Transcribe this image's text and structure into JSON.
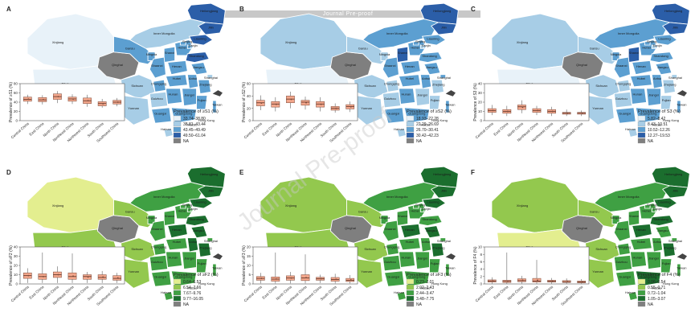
{
  "header": {
    "banner": "Journal Pre-proof",
    "diagonal_watermark": "Journal Pre-proof"
  },
  "regions": [
    "Central China",
    "East China",
    "North China",
    "Northeast China",
    "Northwest China",
    "South China",
    "Southwest China"
  ],
  "province_labels": {
    "xinjiang": "Xinjiang",
    "tibet": "Tibet",
    "qinghai": "Qinghai",
    "gansu": "Gansu",
    "inner_mongolia": "Inner Mongolia",
    "heilongjiang": "Heilongjiang",
    "jilin": "Jilin",
    "liaoning": "Liaoning",
    "beijing": "Beijing",
    "tianjin": "Tianjin",
    "hebei": "Hebei",
    "ningxia": "Ningxia",
    "shanxi": "Shanxi",
    "shandong": "Shandong",
    "shaanxi": "Shaanxi",
    "henan": "Henan",
    "jiangsu": "Jiangsu",
    "sichuan": "Sichuan",
    "chongqing": "Chongqing",
    "hubei": "Hubei",
    "anhui": "Anhui",
    "shanghai": "Shanghai",
    "zhejiang": "Zhejiang",
    "hunan": "Hunan",
    "jiangxi": "Jiangxi",
    "guizhou": "Guizhou",
    "fujian": "Fujian",
    "yunnan": "Yunnan",
    "guangxi": "Guangxi",
    "guangdong": "Guangdong",
    "taiwan": "Taiwan",
    "hong_kong": "Hong Kong",
    "macao": "Macao",
    "hainan": "Hainan"
  },
  "panels": [
    {
      "letter": "A",
      "ylabel": "Prevalence of ≥S1 (%)",
      "ymax": 80,
      "ticks": [
        0,
        20,
        40,
        60,
        80
      ],
      "legend_title": "Prevalence of ≥S1 (%)",
      "legend": [
        "33.74–38.80",
        "38.81–43.44",
        "43.45–49.49",
        "49.50–61.04",
        "NA"
      ],
      "palette": [
        "#e8f2f9",
        "#a7cde6",
        "#5c9fd1",
        "#2b5ea8",
        "#7f7f7f"
      ],
      "boxes": [
        {
          "q1": 42,
          "med": 46,
          "q3": 51,
          "lo": 36,
          "hi": 56
        },
        {
          "q1": 41,
          "med": 45,
          "q3": 50,
          "lo": 35,
          "hi": 55
        },
        {
          "q1": 46,
          "med": 52,
          "q3": 58,
          "lo": 38,
          "hi": 64
        },
        {
          "q1": 42,
          "med": 47,
          "q3": 51,
          "lo": 36,
          "hi": 57
        },
        {
          "q1": 37,
          "med": 43,
          "q3": 49,
          "lo": 30,
          "hi": 56
        },
        {
          "q1": 32,
          "med": 37,
          "q3": 41,
          "lo": 28,
          "hi": 47
        },
        {
          "q1": 36,
          "med": 40,
          "q3": 44,
          "lo": 31,
          "hi": 49
        }
      ]
    },
    {
      "letter": "B",
      "ylabel": "Prevalence of ≥S2 (%)",
      "ymax": 60,
      "ticks": [
        0,
        20,
        40,
        60
      ],
      "legend_title": "Prevalence of ≥S2 (%)",
      "legend": [
        "18.93–22.28",
        "22.29–26.69",
        "26.70–30.41",
        "30.42–42.23",
        "NA"
      ],
      "palette": [
        "#e8f2f9",
        "#a7cde6",
        "#5c9fd1",
        "#2b5ea8",
        "#7f7f7f"
      ],
      "boxes": [
        {
          "q1": 24,
          "med": 29,
          "q3": 33,
          "lo": 17,
          "hi": 41
        },
        {
          "q1": 22,
          "med": 27,
          "q3": 31,
          "lo": 15,
          "hi": 38
        },
        {
          "q1": 29,
          "med": 35,
          "q3": 40,
          "lo": 20,
          "hi": 47
        },
        {
          "q1": 25,
          "med": 30,
          "q3": 33,
          "lo": 18,
          "hi": 39
        },
        {
          "q1": 22,
          "med": 27,
          "q3": 31,
          "lo": 15,
          "hi": 38
        },
        {
          "q1": 17,
          "med": 20,
          "q3": 23,
          "lo": 13,
          "hi": 28
        },
        {
          "q1": 19,
          "med": 23,
          "q3": 26,
          "lo": 14,
          "hi": 31
        }
      ]
    },
    {
      "letter": "C",
      "ylabel": "Prevalence of S3 (%)",
      "ymax": 40,
      "ticks": [
        0,
        10,
        20,
        30,
        40
      ],
      "legend_title": "Prevalence of S3 (%)",
      "legend": [
        "5.82–8.42",
        "8.43–10.51",
        "10.52–12.26",
        "12.27–19.53",
        "NA"
      ],
      "palette": [
        "#e8f2f9",
        "#a7cde6",
        "#5c9fd1",
        "#2b5ea8",
        "#7f7f7f"
      ],
      "boxes": [
        {
          "q1": 9,
          "med": 11,
          "q3": 13,
          "lo": 6,
          "hi": 17
        },
        {
          "q1": 8,
          "med": 10,
          "q3": 12,
          "lo": 5,
          "hi": 16
        },
        {
          "q1": 12,
          "med": 15,
          "q3": 17,
          "lo": 8,
          "hi": 22
        },
        {
          "q1": 9,
          "med": 11,
          "q3": 13,
          "lo": 6,
          "hi": 16
        },
        {
          "q1": 8,
          "med": 10,
          "q3": 12,
          "lo": 5,
          "hi": 15
        },
        {
          "q1": 7,
          "med": 8,
          "q3": 9,
          "lo": 5,
          "hi": 12
        },
        {
          "q1": 7,
          "med": 8,
          "q3": 9,
          "lo": 5,
          "hi": 11
        }
      ]
    },
    {
      "letter": "D",
      "ylabel": "Prevalence of ≥F2 (%)",
      "ymax": 40,
      "ticks": [
        0,
        10,
        20,
        30,
        40
      ],
      "legend_title": "Prevalence of ≥F2 (%)",
      "legend": [
        "0.64–6.53",
        "6.54–7.66",
        "7.67–9.76",
        "9.77–16.05",
        "NA"
      ],
      "palette": [
        "#e3ee8f",
        "#93c84e",
        "#3fa043",
        "#1b6e2e",
        "#7f7f7f"
      ],
      "boxes": [
        {
          "q1": 6,
          "med": 9,
          "q3": 12,
          "lo": 1,
          "hi": 17
        },
        {
          "q1": 5,
          "med": 8,
          "q3": 11,
          "lo": 1,
          "hi": 34
        },
        {
          "q1": 7,
          "med": 10,
          "q3": 13,
          "lo": 1,
          "hi": 19
        },
        {
          "q1": 5,
          "med": 8,
          "q3": 12,
          "lo": 1,
          "hi": 33
        },
        {
          "q1": 5,
          "med": 8,
          "q3": 10,
          "lo": 1,
          "hi": 13
        },
        {
          "q1": 5,
          "med": 7,
          "q3": 10,
          "lo": 1,
          "hi": 14
        },
        {
          "q1": 4,
          "med": 6,
          "q3": 9,
          "lo": 1,
          "hi": 12
        }
      ]
    },
    {
      "letter": "E",
      "ylabel": "Prevalence of ≥F3 (%)",
      "ymax": 20,
      "ticks": [
        0,
        5,
        10,
        15,
        20
      ],
      "legend_title": "Prevalence of ≥F3 (%)",
      "legend": [
        "0.23–2.01",
        "2.02–2.43",
        "2.44–3.47",
        "3.48–7.75",
        "NA"
      ],
      "palette": [
        "#e3ee8f",
        "#93c84e",
        "#3fa043",
        "#1b6e2e",
        "#7f7f7f"
      ],
      "boxes": [
        {
          "q1": 2,
          "med": 3,
          "q3": 4,
          "lo": 0.3,
          "hi": 6
        },
        {
          "q1": 1.5,
          "med": 2.6,
          "q3": 3.8,
          "lo": 0.3,
          "hi": 17
        },
        {
          "q1": 2,
          "med": 3.2,
          "q3": 4.4,
          "lo": 0.3,
          "hi": 6.5
        },
        {
          "q1": 1.8,
          "med": 3.3,
          "q3": 5,
          "lo": 0.3,
          "hi": 16
        },
        {
          "q1": 2,
          "med": 2.8,
          "q3": 3.6,
          "lo": 0.5,
          "hi": 5
        },
        {
          "q1": 1.5,
          "med": 2.4,
          "q3": 3.5,
          "lo": 0.3,
          "hi": 5.5
        },
        {
          "q1": 1.3,
          "med": 2,
          "q3": 3,
          "lo": 0.3,
          "hi": 4.8
        }
      ]
    },
    {
      "letter": "F",
      "ylabel": "Prevalence of F4 (%)",
      "ymax": 10,
      "ticks": [
        0,
        2,
        4,
        6,
        8,
        10
      ],
      "legend_title": "Prevalence of F4 (%)",
      "legend": [
        "0.06–0.54",
        "0.55–0.71",
        "0.72–1.04",
        "1.05–3.07",
        "NA"
      ],
      "palette": [
        "#e3ee8f",
        "#93c84e",
        "#3fa043",
        "#1b6e2e",
        "#7f7f7f"
      ],
      "boxes": [
        {
          "q1": 0.5,
          "med": 0.8,
          "q3": 1.1,
          "lo": 0.1,
          "hi": 1.8
        },
        {
          "q1": 0.4,
          "med": 0.7,
          "q3": 1.0,
          "lo": 0.1,
          "hi": 8.5
        },
        {
          "q1": 0.6,
          "med": 0.9,
          "q3": 1.4,
          "lo": 0.1,
          "hi": 2.2
        },
        {
          "q1": 0.5,
          "med": 0.8,
          "q3": 1.5,
          "lo": 0.1,
          "hi": 6.5
        },
        {
          "q1": 0.5,
          "med": 0.7,
          "q3": 1.0,
          "lo": 0.1,
          "hi": 1.6
        },
        {
          "q1": 0.4,
          "med": 0.6,
          "q3": 0.9,
          "lo": 0.1,
          "hi": 1.5
        },
        {
          "q1": 0.3,
          "med": 0.5,
          "q3": 0.8,
          "lo": 0.1,
          "hi": 1.3
        }
      ]
    }
  ]
}
